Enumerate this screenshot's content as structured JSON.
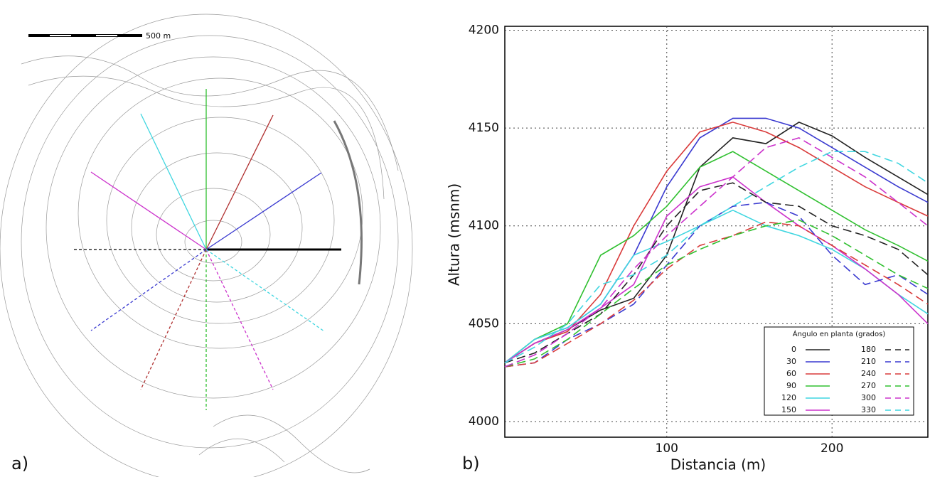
{
  "map": {
    "scale_label": "500 m",
    "panel_label": "a)"
  },
  "chart_data": {
    "type": "line",
    "panel_label": "b)",
    "x_label": "Distancia (m)",
    "y_label": "Altura (msnm)",
    "legend_title": "Ángulo en planta (grados)",
    "legend": "lower right",
    "grid": true,
    "xlim": [
      2,
      258
    ],
    "ylim": [
      3992,
      4202
    ],
    "xticks": [
      100,
      200
    ],
    "yticks": [
      4000,
      4050,
      4100,
      4150,
      4200
    ],
    "x": [
      2,
      20,
      40,
      60,
      80,
      100,
      120,
      140,
      160,
      180,
      200,
      220,
      240,
      258
    ],
    "series": [
      {
        "name": "0",
        "color": "#222222",
        "dashed": false,
        "values": [
          4030,
          4040,
          4047,
          4057,
          4063,
          4085,
          4130,
          4145,
          4142,
          4153,
          4146,
          4135,
          4125,
          4116
        ]
      },
      {
        "name": "30",
        "color": "#3a3ad0",
        "dashed": false,
        "values": [
          4030,
          4042,
          4048,
          4060,
          4085,
          4120,
          4145,
          4155,
          4155,
          4150,
          4140,
          4130,
          4120,
          4112
        ]
      },
      {
        "name": "60",
        "color": "#d93a3a",
        "dashed": false,
        "values": [
          4030,
          4040,
          4046,
          4065,
          4100,
          4128,
          4148,
          4153,
          4148,
          4140,
          4130,
          4120,
          4112,
          4105
        ]
      },
      {
        "name": "90",
        "color": "#30c030",
        "dashed": false,
        "values": [
          4030,
          4042,
          4050,
          4085,
          4095,
          4110,
          4130,
          4138,
          4128,
          4118,
          4108,
          4098,
          4090,
          4082
        ]
      },
      {
        "name": "120",
        "color": "#3fd6e0",
        "dashed": false,
        "values": [
          4030,
          4042,
          4048,
          4060,
          4085,
          4092,
          4100,
          4108,
          4100,
          4095,
          4088,
          4078,
          4065,
          4055
        ]
      },
      {
        "name": "150",
        "color": "#cc33cc",
        "dashed": false,
        "values": [
          4030,
          4040,
          4047,
          4058,
          4070,
          4105,
          4120,
          4125,
          4112,
          4100,
          4090,
          4078,
          4065,
          4050
        ]
      },
      {
        "name": "180",
        "color": "#222222",
        "dashed": true,
        "values": [
          4030,
          4035,
          4045,
          4055,
          4075,
          4100,
          4118,
          4122,
          4112,
          4110,
          4100,
          4095,
          4088,
          4075
        ]
      },
      {
        "name": "210",
        "color": "#3a3ad0",
        "dashed": true,
        "values": [
          4028,
          4030,
          4042,
          4050,
          4060,
          4080,
          4100,
          4110,
          4112,
          4105,
          4085,
          4070,
          4075,
          4065
        ]
      },
      {
        "name": "240",
        "color": "#d93a3a",
        "dashed": true,
        "values": [
          4028,
          4030,
          4040,
          4050,
          4062,
          4078,
          4090,
          4095,
          4102,
          4100,
          4090,
          4080,
          4070,
          4060
        ]
      },
      {
        "name": "270",
        "color": "#30c030",
        "dashed": true,
        "values": [
          4028,
          4032,
          4042,
          4055,
          4068,
          4080,
          4088,
          4095,
          4100,
          4103,
          4095,
          4085,
          4075,
          4068
        ]
      },
      {
        "name": "300",
        "color": "#cc33cc",
        "dashed": true,
        "values": [
          4028,
          4034,
          4045,
          4058,
          4078,
          4095,
          4110,
          4125,
          4140,
          4145,
          4135,
          4125,
          4112,
          4100
        ]
      },
      {
        "name": "330",
        "color": "#3fd6e0",
        "dashed": true,
        "values": [
          4030,
          4038,
          4050,
          4070,
          4075,
          4085,
          4100,
          4110,
          4120,
          4130,
          4138,
          4138,
          4132,
          4122
        ]
      }
    ]
  }
}
